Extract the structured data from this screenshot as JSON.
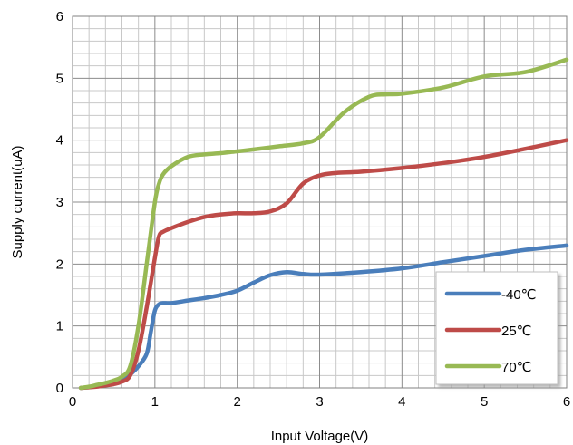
{
  "chart_data": {
    "type": "line",
    "title": "",
    "xlabel": "Input Voltage(V)",
    "ylabel": "Supply current(uA)",
    "xlim": [
      0,
      6
    ],
    "ylim": [
      0,
      6
    ],
    "x_ticks": [
      0,
      1,
      2,
      3,
      4,
      5,
      6
    ],
    "y_ticks": [
      0,
      1,
      2,
      3,
      4,
      5,
      6
    ],
    "x_tick_labels": [
      "0",
      "1",
      "2",
      "3",
      "4",
      "5",
      "6"
    ],
    "y_tick_labels": [
      "0",
      "1",
      "2",
      "3",
      "4",
      "5",
      "6"
    ],
    "grid": true,
    "minor_grid_step": 0.2,
    "legend_position": "bottom-right",
    "series": [
      {
        "name": "-40℃",
        "color": "#4a7ebb",
        "points": [
          [
            0.1,
            0
          ],
          [
            0.2,
            0.01
          ],
          [
            0.3,
            0.03
          ],
          [
            0.4,
            0.06
          ],
          [
            0.5,
            0.1
          ],
          [
            0.6,
            0.15
          ],
          [
            0.7,
            0.22
          ],
          [
            0.8,
            0.35
          ],
          [
            0.9,
            0.55
          ],
          [
            0.95,
            0.9
          ],
          [
            1.0,
            1.25
          ],
          [
            1.05,
            1.35
          ],
          [
            1.1,
            1.37
          ],
          [
            1.2,
            1.37
          ],
          [
            1.4,
            1.41
          ],
          [
            1.6,
            1.45
          ],
          [
            1.8,
            1.5
          ],
          [
            2.0,
            1.57
          ],
          [
            2.2,
            1.7
          ],
          [
            2.4,
            1.82
          ],
          [
            2.6,
            1.87
          ],
          [
            2.8,
            1.84
          ],
          [
            3.0,
            1.83
          ],
          [
            3.5,
            1.87
          ],
          [
            4.0,
            1.93
          ],
          [
            4.5,
            2.03
          ],
          [
            5.0,
            2.13
          ],
          [
            5.5,
            2.23
          ],
          [
            6.0,
            2.3
          ]
        ]
      },
      {
        "name": "25℃",
        "color": "#be4b48",
        "points": [
          [
            0.1,
            0
          ],
          [
            0.2,
            0.01
          ],
          [
            0.3,
            0.02
          ],
          [
            0.4,
            0.04
          ],
          [
            0.5,
            0.06
          ],
          [
            0.6,
            0.1
          ],
          [
            0.7,
            0.2
          ],
          [
            0.8,
            0.6
          ],
          [
            0.9,
            1.3
          ],
          [
            1.0,
            2.1
          ],
          [
            1.05,
            2.45
          ],
          [
            1.1,
            2.52
          ],
          [
            1.2,
            2.58
          ],
          [
            1.4,
            2.68
          ],
          [
            1.6,
            2.76
          ],
          [
            1.8,
            2.8
          ],
          [
            2.0,
            2.82
          ],
          [
            2.2,
            2.82
          ],
          [
            2.4,
            2.85
          ],
          [
            2.6,
            2.98
          ],
          [
            2.8,
            3.3
          ],
          [
            3.0,
            3.43
          ],
          [
            3.2,
            3.47
          ],
          [
            3.5,
            3.49
          ],
          [
            4.0,
            3.55
          ],
          [
            4.5,
            3.63
          ],
          [
            5.0,
            3.73
          ],
          [
            5.5,
            3.86
          ],
          [
            6.0,
            4.0
          ]
        ]
      },
      {
        "name": "70℃",
        "color": "#98b954",
        "points": [
          [
            0.1,
            0
          ],
          [
            0.2,
            0.02
          ],
          [
            0.3,
            0.05
          ],
          [
            0.4,
            0.08
          ],
          [
            0.5,
            0.12
          ],
          [
            0.6,
            0.18
          ],
          [
            0.7,
            0.35
          ],
          [
            0.8,
            1.0
          ],
          [
            0.9,
            2.0
          ],
          [
            1.0,
            3.0
          ],
          [
            1.05,
            3.3
          ],
          [
            1.1,
            3.45
          ],
          [
            1.2,
            3.58
          ],
          [
            1.4,
            3.73
          ],
          [
            1.6,
            3.77
          ],
          [
            1.8,
            3.79
          ],
          [
            2.0,
            3.82
          ],
          [
            2.2,
            3.85
          ],
          [
            2.5,
            3.9
          ],
          [
            2.8,
            3.95
          ],
          [
            3.0,
            4.05
          ],
          [
            3.3,
            4.45
          ],
          [
            3.6,
            4.7
          ],
          [
            3.8,
            4.74
          ],
          [
            4.0,
            4.75
          ],
          [
            4.5,
            4.85
          ],
          [
            5.0,
            5.03
          ],
          [
            5.5,
            5.1
          ],
          [
            6.0,
            5.3
          ]
        ]
      }
    ]
  }
}
